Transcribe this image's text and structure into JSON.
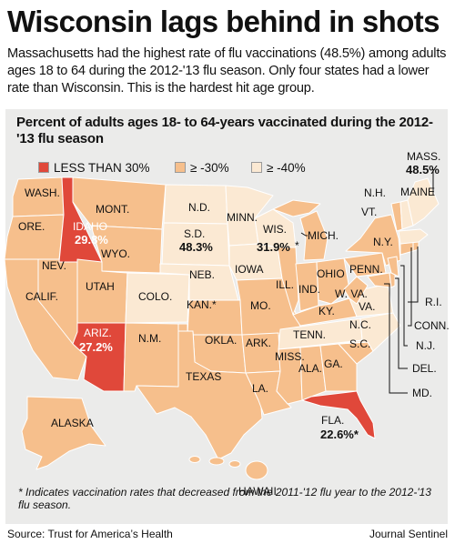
{
  "headline": "Wisconsin lags behind in shots",
  "intro": "Massachusetts had the highest rate of flu vaccinations (48.5%) among adults ages 18 to 64 during the 2012-'13 flu season. Only four states had a lower rate than Wisconsin. This is the hardest hit age group.",
  "map_title": "Percent of adults ages 18- to 64-years vaccinated during the 2012-'13 flu season",
  "colors": {
    "low": "#e0483a",
    "mid": "#f6bf8c",
    "high": "#fbe9d3",
    "panel": "#ebebea",
    "water": "#ffffff"
  },
  "legend": [
    {
      "label": "LESS THAN 30%",
      "color": "#e0483a"
    },
    {
      "label": "≥ -30%",
      "color": "#f6bf8c"
    },
    {
      "label": "≥ -40%",
      "color": "#fbe9d3"
    }
  ],
  "states": {
    "wash": "WASH.",
    "ore": "ORE.",
    "calif": "CALIF.",
    "idaho": "IDAHO",
    "idaho_value": "29.8%",
    "nev": "NEV.",
    "mont": "MONT.",
    "wyo": "WYO.",
    "utah": "UTAH",
    "colo": "COLO.",
    "ariz": "ARIZ.",
    "ariz_value": "27.2%",
    "nm": "N.M.",
    "nd": "N.D.",
    "sd": "S.D.",
    "sd_value": "48.3%",
    "neb": "NEB.",
    "kan": "KAN.*",
    "okla": "OKLA.",
    "texas": "TEXAS",
    "minn": "MINN.",
    "iowa": "IOWA",
    "mo": "MO.",
    "ark": "ARK.",
    "la": "LA.",
    "wis": "WIS.",
    "wis_value": "31.9%",
    "wis_mark": "*",
    "ill": "ILL.",
    "mich": "MICH.",
    "ind": "IND.",
    "ohio": "OHIO",
    "ky": "KY.",
    "tenn": "TENN.",
    "miss": "MISS.",
    "ala": "ALA.",
    "ga": "GA.",
    "fla": "FLA.",
    "fla_value": "22.6%*",
    "sc": "S.C.",
    "nc": "N.C.",
    "va": "VA.",
    "wva": "W. VA.",
    "penn": "PENN.",
    "ny": "N.Y.",
    "vt": "VT.",
    "nh": "N.H.",
    "maine": "MAINE",
    "mass": "MASS.",
    "mass_value": "48.5%",
    "ri": "R.I.",
    "conn": "CONN.",
    "nj": "N.J.",
    "del": "DEL.",
    "md": "MD.",
    "alaska": "ALASKA",
    "hawaii": "HAWAII"
  },
  "footnote": "* Indicates vaccination rates that decreased from the 2011-'12 flu year to the 2012-'13 flu season.",
  "source": "Source: Trust for America’s Health",
  "credit": "Journal Sentinel"
}
